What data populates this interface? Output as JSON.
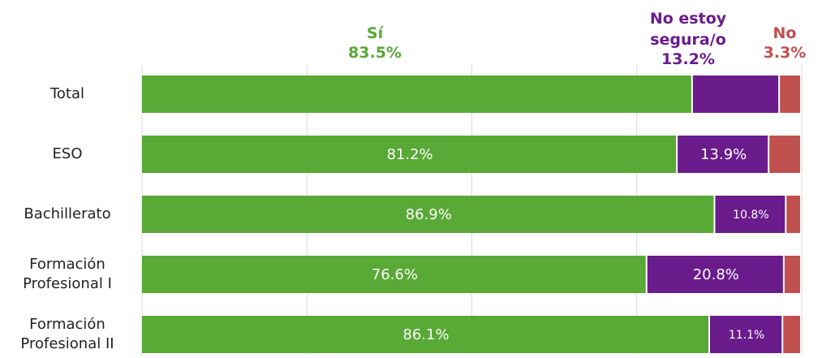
{
  "chart_data": {
    "type": "stacked-bar",
    "categories": [
      "Total",
      "ESO",
      "Bachillerato",
      "Formación Profesional I",
      "Formación Profesional II"
    ],
    "series": [
      {
        "name": "Sí",
        "color": "#58a935",
        "values": [
          83.5,
          81.2,
          86.9,
          76.6,
          86.1
        ],
        "value_labels": [
          "83.5%",
          "81.2%",
          "86.9%",
          "76.6%",
          "86.1%"
        ]
      },
      {
        "name": "No estoy segura/o",
        "color": "#6a1b8c",
        "values": [
          13.2,
          13.9,
          10.8,
          20.8,
          11.1
        ],
        "value_labels": [
          "13.2%",
          "13.9%",
          "10.8%",
          "20.8%",
          "11.1%"
        ]
      },
      {
        "name": "No",
        "color": "#c0504d",
        "values": [
          3.3,
          4.9,
          2.3,
          2.6,
          2.8
        ],
        "value_labels": [
          "3.3%",
          null,
          null,
          null,
          null
        ]
      }
    ],
    "xlim": [
      0,
      100
    ],
    "xticks": [
      0,
      25,
      50,
      75,
      100
    ],
    "grid": true
  }
}
